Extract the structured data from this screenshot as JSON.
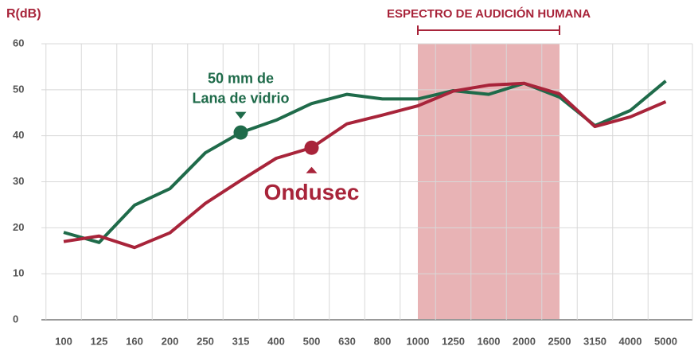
{
  "chart_data": {
    "type": "line",
    "y_label": "R(dB)",
    "categories": [
      "100",
      "125",
      "160",
      "200",
      "250",
      "315",
      "400",
      "500",
      "630",
      "800",
      "1000",
      "1250",
      "1600",
      "2000",
      "2500",
      "3150",
      "4000",
      "5000"
    ],
    "ylim": [
      0,
      60
    ],
    "yticks": [
      0,
      10,
      20,
      30,
      40,
      50,
      60
    ],
    "grid": true,
    "highlight": {
      "label": "ESPECTRO DE AUDICIÓN HUMANA",
      "from": "1000",
      "to": "2500",
      "color": "#e8b3b5"
    },
    "series": [
      {
        "name": [
          "50 mm de",
          "Lana de vidrio"
        ],
        "color": "#1f6b4a",
        "marker_category": "315",
        "values": [
          19,
          16.8,
          24.9,
          28.5,
          36.3,
          40.7,
          43.4,
          47,
          49,
          48,
          48,
          49.8,
          49,
          51.4,
          48.4,
          42.2,
          45.5,
          51.9
        ]
      },
      {
        "name": [
          "Ondusec"
        ],
        "color": "#a8243a",
        "marker_category": "500",
        "values": [
          17,
          18.2,
          15.7,
          18.9,
          25.3,
          30.3,
          35.1,
          37.4,
          42.6,
          44.5,
          46.5,
          49.7,
          51,
          51.4,
          49.1,
          42,
          44.1,
          47.4
        ]
      }
    ]
  }
}
